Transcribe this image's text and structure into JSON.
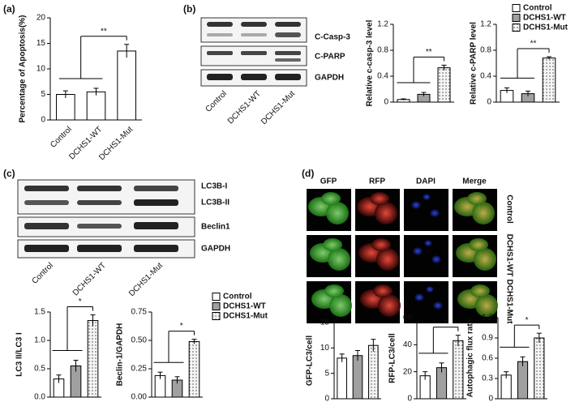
{
  "figure": {
    "panels": [
      "(a)",
      "(b)",
      "(c)",
      "(d)"
    ],
    "b_blot": {
      "labels": [
        "C-Casp-3",
        "C-PARP",
        "GAPDH"
      ],
      "lanes": [
        "Control",
        "DCHS1-WT",
        "DCHS1-Mut"
      ]
    },
    "c_blot": {
      "labels": [
        "LC3B-I",
        "LC3B-II",
        "Beclin1",
        "GAPDH"
      ],
      "lanes": [
        "Control",
        "DCHS1-WT",
        "DCHS1-Mut"
      ]
    },
    "d_images": {
      "channels": [
        "GFP",
        "RFP",
        "DAPI",
        "Merge"
      ],
      "rows": [
        "Control",
        "DCHS1-WT",
        "DCHS1-Mut"
      ]
    }
  },
  "chart_data": [
    {
      "type": "bar",
      "ylabel": "Percentage of Apoptosis(%)",
      "categories": [
        "Control",
        "DCHS1-WT",
        "DCHS1-Mut"
      ],
      "values": [
        5,
        5.5,
        13.5
      ],
      "errors": [
        0.7,
        0.7,
        1.3
      ],
      "color": "#ffffff",
      "ylim": [
        0,
        20
      ],
      "yticks": [
        0,
        5,
        10,
        15,
        20
      ],
      "annotation": "**"
    },
    {
      "type": "bar",
      "ylabel": "Relative c-casp-3 level",
      "series": [
        {
          "color": "#ffffff",
          "values": [
            0.04
          ],
          "errors": [
            0.01
          ]
        },
        {
          "color": "#a0a0a0",
          "values": [
            0.12
          ],
          "errors": [
            0.03
          ]
        },
        {
          "color": "#e8e8e8",
          "pattern": "dots",
          "values": [
            0.53
          ],
          "errors": [
            0.04
          ]
        }
      ],
      "ylim": [
        0,
        1.2
      ],
      "yticks": [
        0,
        0.4,
        0.8,
        1.2
      ],
      "annotation": "**"
    },
    {
      "type": "bar",
      "ylabel": "Relative c-PARP level",
      "series": [
        {
          "name": "Control",
          "color": "#ffffff",
          "values": [
            0.18
          ],
          "errors": [
            0.04
          ]
        },
        {
          "name": "DCHS1-WT",
          "color": "#a0a0a0",
          "values": [
            0.13
          ],
          "errors": [
            0.04
          ]
        },
        {
          "name": "DCHS1-Mut",
          "color": "#e8e8e8",
          "pattern": "dots",
          "values": [
            0.68
          ],
          "errors": [
            0.02
          ]
        }
      ],
      "ylim": [
        0,
        1.2
      ],
      "yticks": [
        0,
        0.4,
        0.8,
        1.2
      ],
      "annotation": "**",
      "legend": "top-right"
    },
    {
      "type": "bar",
      "ylabel": "LC3 II/LC3 I",
      "series": [
        {
          "color": "#ffffff",
          "values": [
            0.32
          ],
          "errors": [
            0.07
          ]
        },
        {
          "color": "#a0a0a0",
          "values": [
            0.55
          ],
          "errors": [
            0.1
          ]
        },
        {
          "color": "#e8e8e8",
          "pattern": "dots",
          "values": [
            1.35
          ],
          "errors": [
            0.1
          ]
        }
      ],
      "ylim": [
        0,
        1.5
      ],
      "yticks": [
        {
          "value": 0,
          "label": "0.0"
        },
        {
          "value": 0.5,
          "label": "0.5"
        },
        {
          "value": 1,
          "label": "1.0"
        },
        {
          "value": 1.5,
          "label": "1.5"
        }
      ],
      "annotation": "*"
    },
    {
      "type": "bar",
      "ylabel": "Beclin-1/GAPDH",
      "series": [
        {
          "name": "Control",
          "color": "#ffffff",
          "values": [
            0.19
          ],
          "errors": [
            0.03
          ]
        },
        {
          "name": "DCHS1-WT",
          "color": "#a0a0a0",
          "values": [
            0.15
          ],
          "errors": [
            0.03
          ]
        },
        {
          "name": "DCHS1-Mut",
          "color": "#e8e8e8",
          "pattern": "dots",
          "values": [
            0.49
          ],
          "errors": [
            0.02
          ]
        }
      ],
      "ylim": [
        0,
        0.75
      ],
      "yticks": [
        {
          "value": 0,
          "label": "0.00"
        },
        {
          "value": 0.25,
          "label": "0.25"
        },
        {
          "value": 0.5,
          "label": "0.50"
        },
        {
          "value": 0.75,
          "label": "0.75"
        }
      ],
      "annotation": "*",
      "legend": "top-right"
    },
    {
      "type": "bar",
      "ylabel": "GFP-LC3/cell",
      "series": [
        {
          "color": "#ffffff",
          "values": [
            8
          ],
          "errors": [
            0.8
          ]
        },
        {
          "color": "#a0a0a0",
          "values": [
            8.5
          ],
          "errors": [
            1
          ]
        },
        {
          "color": "#e8e8e8",
          "pattern": "dots",
          "values": [
            10.5
          ],
          "errors": [
            1.2
          ]
        }
      ],
      "ylim": [
        0,
        15
      ],
      "yticks": [
        0,
        5,
        10,
        15
      ]
    },
    {
      "type": "bar",
      "ylabel": "RFP-LC3/cell",
      "series": [
        {
          "color": "#ffffff",
          "values": [
            17
          ],
          "errors": [
            3
          ]
        },
        {
          "color": "#a0a0a0",
          "values": [
            23
          ],
          "errors": [
            3.5
          ]
        },
        {
          "color": "#e8e8e8",
          "pattern": "dots",
          "values": [
            43
          ],
          "errors": [
            4
          ]
        }
      ],
      "ylim": [
        0,
        60
      ],
      "yticks": [
        0,
        20,
        40,
        60
      ],
      "annotation": "*"
    },
    {
      "type": "bar",
      "ylabel": "Autophagic flux rate",
      "series": [
        {
          "color": "#ffffff",
          "values": [
            0.35
          ],
          "errors": [
            0.05
          ]
        },
        {
          "color": "#a0a0a0",
          "values": [
            0.55
          ],
          "errors": [
            0.07
          ]
        },
        {
          "color": "#e8e8e8",
          "pattern": "dots",
          "values": [
            0.9
          ],
          "errors": [
            0.07
          ]
        }
      ],
      "ylim": [
        0,
        1.2
      ],
      "yticks": [
        0,
        0.3,
        0.6,
        0.9,
        1.2
      ],
      "annotation": "*"
    }
  ]
}
